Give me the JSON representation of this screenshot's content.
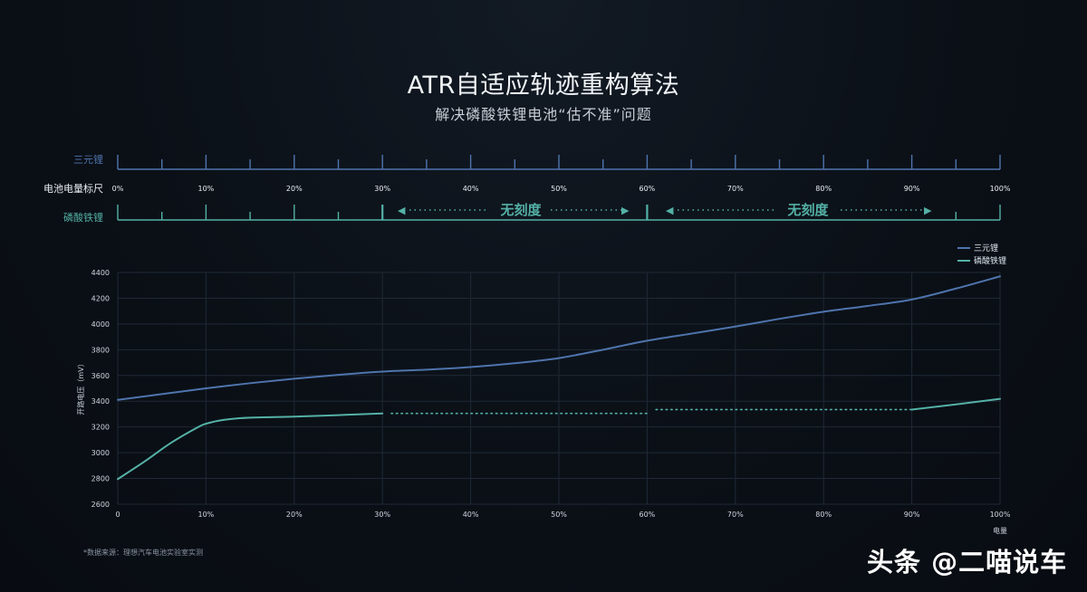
{
  "header": {
    "title": "ATR自适应轨迹重构算法",
    "subtitle": "解决磷酸铁锂电池“估不准”问题"
  },
  "ruler": {
    "label_ternary": "三元锂",
    "label_scale": "电池电量标尺",
    "label_lfp": "磷酸铁锂",
    "ticks": [
      "0%",
      "10%",
      "20%",
      "30%",
      "40%",
      "50%",
      "60%",
      "70%",
      "80%",
      "90%",
      "100%"
    ],
    "no_scale_label": "无刻度",
    "colors": {
      "ternary": "#4e74ad",
      "lfp": "#54b1a6"
    }
  },
  "chart_data": {
    "type": "line",
    "xlabel": "电量",
    "ylabel": "开路电压（mV）",
    "x_ticks": [
      "0",
      "10%",
      "20%",
      "30%",
      "40%",
      "50%",
      "60%",
      "70%",
      "80%",
      "90%",
      "100%"
    ],
    "ylim": [
      2600,
      4400
    ],
    "y_ticks": [
      2600,
      2800,
      3000,
      3200,
      3400,
      3600,
      3800,
      4000,
      4200,
      4400
    ],
    "grid": true,
    "legend_position": "top-right",
    "series": [
      {
        "name": "三元锂",
        "color": "#4e74ad",
        "style": "solid",
        "x": [
          0,
          5,
          10,
          15,
          20,
          25,
          30,
          35,
          40,
          45,
          50,
          55,
          60,
          65,
          70,
          75,
          80,
          85,
          90,
          95,
          100
        ],
        "y": [
          3410,
          3455,
          3500,
          3540,
          3575,
          3605,
          3630,
          3645,
          3665,
          3695,
          3735,
          3800,
          3870,
          3925,
          3980,
          4040,
          4095,
          4140,
          4190,
          4275,
          4370
        ]
      },
      {
        "name": "磷酸铁锂",
        "color": "#54b1a6",
        "segments": [
          {
            "style": "solid",
            "x": [
              0,
              3,
              6,
              9,
              10,
              12,
              15,
              20,
              25,
              30
            ],
            "y": [
              2795,
              2930,
              3075,
              3195,
              3225,
              3255,
              3272,
              3280,
              3292,
              3305
            ]
          },
          {
            "style": "dotted",
            "x": [
              31,
              60
            ],
            "y": [
              3305,
              3305
            ]
          },
          {
            "style": "dotted",
            "x": [
              61,
              90
            ],
            "y": [
              3335,
              3335
            ]
          },
          {
            "style": "solid",
            "x": [
              90,
              95,
              100
            ],
            "y": [
              3335,
              3375,
              3418
            ]
          }
        ]
      }
    ]
  },
  "footnote": "*数据来源：理想汽车电池实验室实测",
  "watermark": "头条 @二喵说车"
}
